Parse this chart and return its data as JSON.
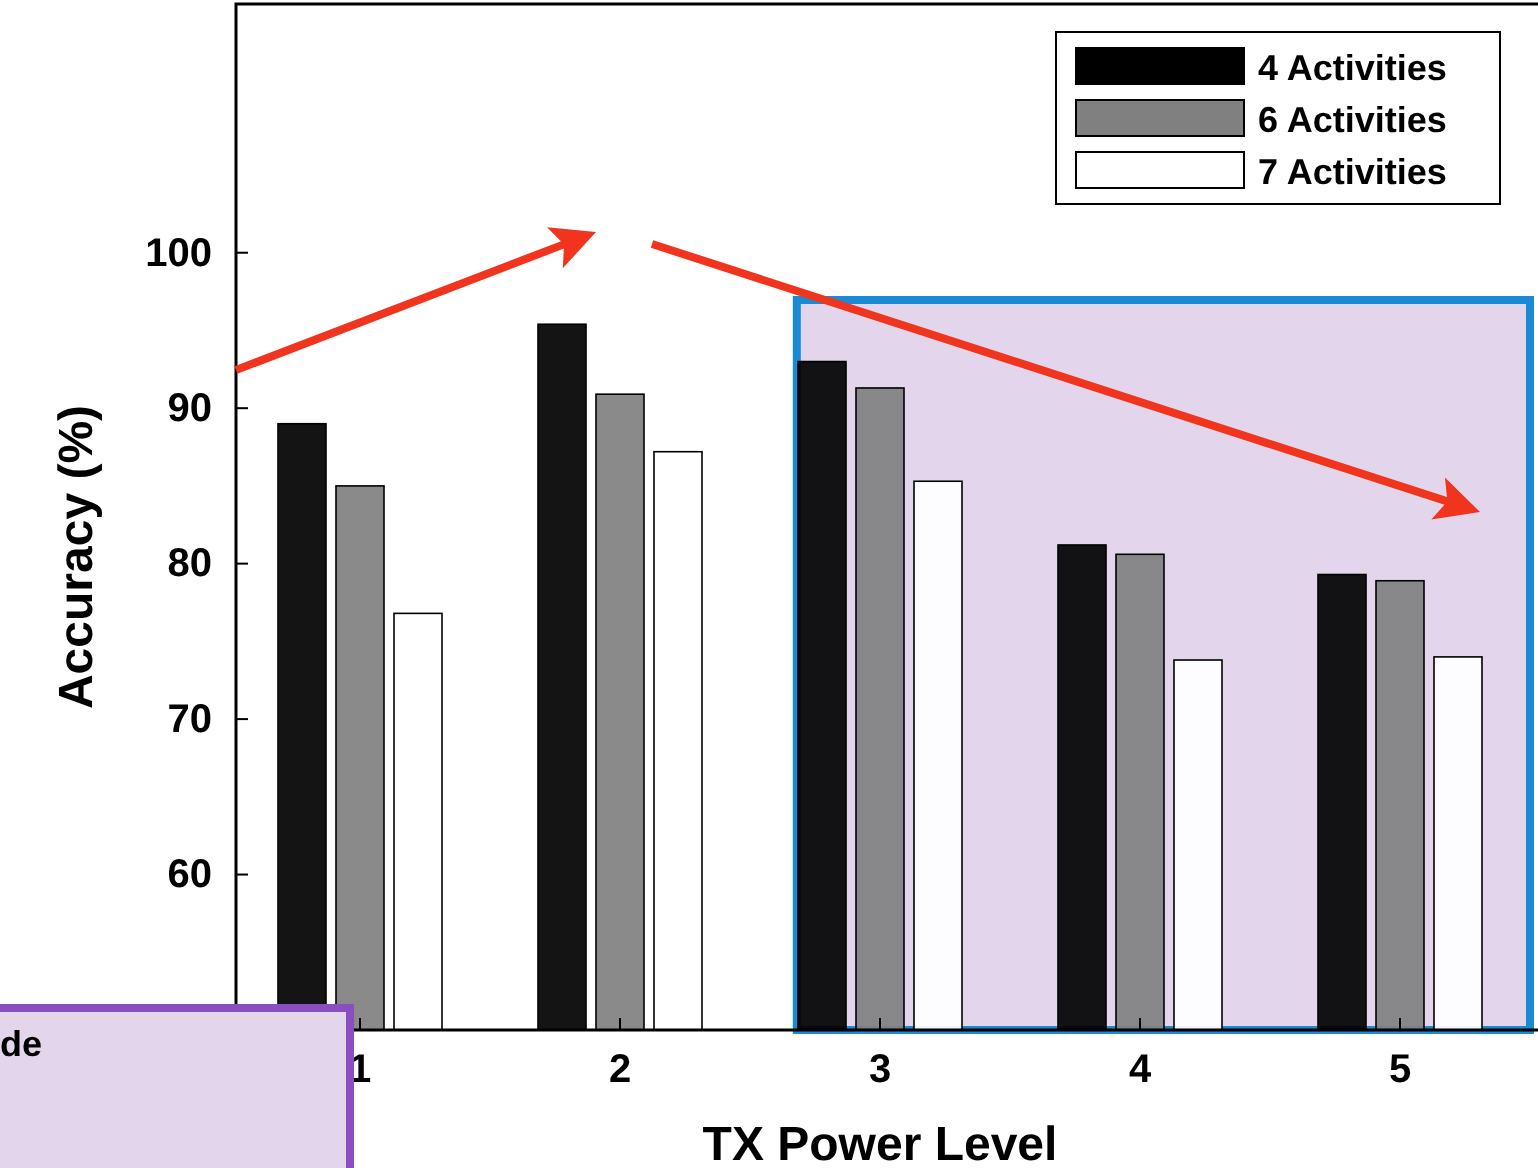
{
  "chart_data": {
    "type": "bar",
    "xlabel": "TX Power Level",
    "ylabel": "Accuracy (%)",
    "categories": [
      "1",
      "2",
      "3",
      "4",
      "5"
    ],
    "series": [
      {
        "name": "4 Activities",
        "color": "#000000",
        "values": [
          89.0,
          95.4,
          93.0,
          81.2,
          79.3
        ]
      },
      {
        "name": "6 Activities",
        "color": "#808080",
        "values": [
          85.0,
          90.9,
          91.3,
          80.6,
          78.9
        ]
      },
      {
        "name": "7 Activities",
        "color": "#ffffff",
        "values": [
          76.8,
          87.2,
          85.3,
          73.8,
          74.0
        ]
      }
    ],
    "ylim": [
      50,
      116
    ],
    "yticks": [
      60,
      70,
      80,
      90,
      100
    ],
    "grid": false,
    "legend": "top right",
    "bands": [
      {
        "axis": "x",
        "from": "3",
        "to": "5",
        "color": "#e3d6ec"
      }
    ],
    "annotations": [
      "de"
    ]
  }
}
